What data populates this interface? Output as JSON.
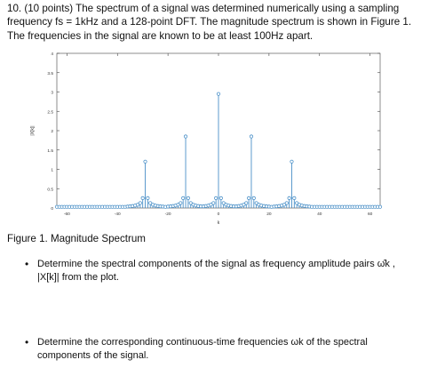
{
  "problem": {
    "text": "10. (10 points) The spectrum of a signal was determined numerically using a sampling frequency fs = 1kHz and a 128-point DFT. The magnitude spectrum is shown in Figure 1. The frequencies in the signal are known to be at least 100Hz apart."
  },
  "caption": "Figure 1. Magnitude Spectrum",
  "bullets": [
    {
      "text": "Determine the spectral components of the signal as frequency amplitude pairs ω̂k , |X[k]| from the plot."
    },
    {
      "text": "Determine the corresponding continuous-time frequencies ωk of the spectral components of the signal."
    }
  ],
  "chart_data": {
    "type": "stem",
    "xlabel": "k",
    "ylabel": "|X[k]|",
    "xlim": [
      -64,
      64
    ],
    "ylim": [
      0,
      4
    ],
    "xticks": [
      -60,
      -40,
      -20,
      0,
      20,
      40,
      60
    ],
    "yticks": [
      0,
      0.5,
      1,
      1.5,
      2,
      2.5,
      3,
      3.5,
      4
    ],
    "color": "#4a90c8",
    "peaks": [
      {
        "k": -29,
        "value": 1.2
      },
      {
        "k": -13,
        "value": 1.85
      },
      {
        "k": 0,
        "value": 2.95
      },
      {
        "k": 13,
        "value": 1.85
      },
      {
        "k": 29,
        "value": 1.2
      }
    ],
    "baseline": 0.03
  }
}
